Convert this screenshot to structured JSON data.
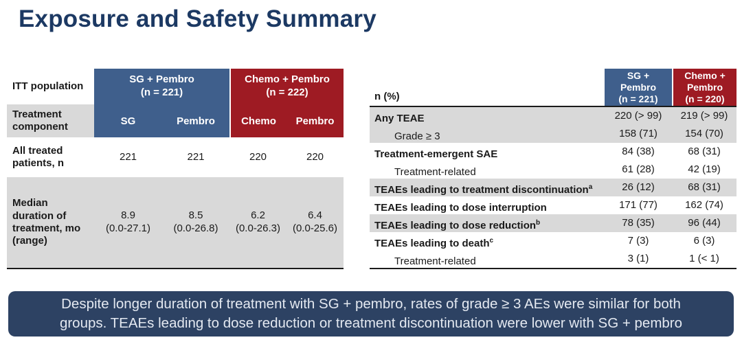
{
  "title": "Exposure and Safety Summary",
  "colors": {
    "title_navy": "#1c3963",
    "header_blue": "#3f5f8c",
    "header_red": "#9e1b23",
    "row_gray": "#d9d9d9",
    "callout_navy": "#2d4263"
  },
  "left_table": {
    "corner_label": "ITT population",
    "component_label": "Treatment component",
    "groups": [
      {
        "name": "SG + Pembro",
        "n": "(n = 221)",
        "components": [
          "SG",
          "Pembro"
        ]
      },
      {
        "name": "Chemo + Pembro",
        "n": "(n = 222)",
        "components": [
          "Chemo",
          "Pembro"
        ]
      }
    ],
    "rows": [
      {
        "label": "All treated patients, n",
        "values": [
          "221",
          "221",
          "220",
          "220"
        ],
        "ranges": [
          "",
          "",
          "",
          ""
        ]
      },
      {
        "label": "Median duration of treatment, mo (range)",
        "values": [
          "8.9",
          "8.5",
          "6.2",
          "6.4"
        ],
        "ranges": [
          "(0.0-27.1)",
          "(0.0-26.8)",
          "(0.0-26.3)",
          "(0.0-25.6)"
        ]
      }
    ]
  },
  "right_table": {
    "corner_label": "n (%)",
    "columns": [
      {
        "l1": "SG +",
        "l2": "Pembro",
        "l3": "(n = 221)"
      },
      {
        "l1": "Chemo +",
        "l2": "Pembro",
        "l3": "(n = 220)"
      }
    ],
    "rows": [
      {
        "label": "Any TEAE",
        "sup": "",
        "v1": "220 (> 99)",
        "v2": "219 (> 99)"
      },
      {
        "label": "Grade ≥ 3",
        "sup": "",
        "v1": "158 (71)",
        "v2": "154 (70)"
      },
      {
        "label": "Treatment-emergent SAE",
        "sup": "",
        "v1": "84 (38)",
        "v2": "68 (31)"
      },
      {
        "label": "Treatment-related",
        "sup": "",
        "v1": "61 (28)",
        "v2": "42 (19)"
      },
      {
        "label": "TEAEs leading to treatment discontinuation",
        "sup": "a",
        "v1": "26 (12)",
        "v2": "68 (31)"
      },
      {
        "label": "TEAEs leading to dose interruption",
        "sup": "",
        "v1": "171 (77)",
        "v2": "162 (74)"
      },
      {
        "label": "TEAEs leading to dose reduction",
        "sup": "b",
        "v1": "78 (35)",
        "v2": "96 (44)"
      },
      {
        "label": "TEAEs leading to death",
        "sup": "c",
        "v1": "7 (3)",
        "v2": "6 (3)"
      },
      {
        "label": "Treatment-related",
        "sup": "",
        "v1": "3 (1)",
        "v2": "1 (< 1)"
      }
    ]
  },
  "callout": {
    "line1": "Despite longer duration of treatment with SG + pembro, rates of grade ≥ 3 AEs were similar for both",
    "line2": "groups. TEAEs leading to dose reduction or treatment discontinuation were lower with SG + pembro"
  }
}
